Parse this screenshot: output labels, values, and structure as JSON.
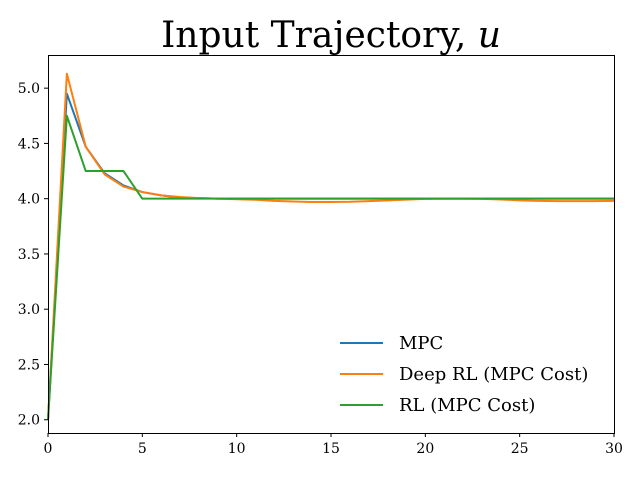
{
  "chart_data": {
    "type": "line",
    "title_prefix": "Input Trajectory, ",
    "title_variable": "u",
    "xlabel": "",
    "ylabel": "",
    "xlim": [
      0,
      30
    ],
    "ylim": [
      1.88,
      5.3
    ],
    "x_ticks": [
      0,
      5,
      10,
      15,
      20,
      25,
      30
    ],
    "y_ticks": [
      2.0,
      2.5,
      3.0,
      3.5,
      4.0,
      4.5,
      5.0
    ],
    "grid": false,
    "legend_position": "lower-right",
    "x": [
      0,
      1,
      2,
      3,
      4,
      5,
      6,
      7,
      8,
      9,
      10,
      11,
      12,
      13,
      14,
      15,
      16,
      17,
      18,
      19,
      20,
      21,
      22,
      23,
      24,
      25,
      26,
      27,
      28,
      29,
      30
    ],
    "series": [
      {
        "name": "MPC",
        "color": "#1f77b4",
        "values": [
          2.0,
          4.95,
          4.47,
          4.23,
          4.12,
          4.06,
          4.03,
          4.01,
          4.005,
          4.0,
          4.0,
          4.0,
          4.0,
          4.0,
          4.0,
          4.0,
          4.0,
          4.0,
          4.0,
          4.0,
          4.0,
          4.0,
          4.0,
          4.0,
          4.0,
          4.0,
          4.0,
          4.0,
          4.0,
          4.0,
          4.0
        ]
      },
      {
        "name": "Deep RL (MPC Cost)",
        "color": "#ff7f0e",
        "values": [
          2.0,
          5.13,
          4.47,
          4.22,
          4.11,
          4.06,
          4.03,
          4.015,
          4.005,
          4.0,
          3.995,
          3.99,
          3.98,
          3.975,
          3.97,
          3.97,
          3.972,
          3.978,
          3.985,
          3.992,
          3.998,
          4.0,
          4.0,
          3.998,
          3.993,
          3.985,
          3.98,
          3.978,
          3.978,
          3.978,
          3.98
        ]
      },
      {
        "name": "RL (MPC Cost)",
        "color": "#2ca02c",
        "values": [
          2.0,
          4.75,
          4.25,
          4.25,
          4.25,
          4.0,
          4.0,
          4.0,
          4.0,
          4.0,
          4.0,
          4.0,
          4.0,
          4.0,
          4.0,
          4.0,
          4.0,
          4.0,
          4.0,
          4.0,
          4.0,
          4.0,
          4.0,
          4.0,
          4.0,
          4.0,
          4.0,
          4.0,
          4.0,
          4.0,
          4.0
        ]
      }
    ]
  }
}
